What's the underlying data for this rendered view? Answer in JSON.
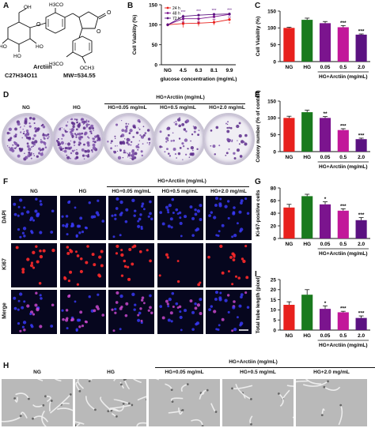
{
  "panels": {
    "A": {
      "label": "A",
      "substituent_top": "H3CO",
      "sugar_oh": [
        "OH",
        "HO",
        "HO",
        "HO"
      ],
      "substituent_ring1": "H3CO",
      "substituent_ring2": "OCH3",
      "name": "Arctiin",
      "formula": "C27H34O11",
      "mw": "MW=534.55"
    },
    "B": {
      "label": "B"
    },
    "C": {
      "label": "C"
    },
    "D": {
      "label": "D",
      "group_header": "HG+Arctiin (mg/mL)",
      "captions": [
        "NG",
        "HG",
        "HG+0.05 mg/mL",
        "HG+0.5 mg/mL",
        "HG+2.0 mg/mL"
      ]
    },
    "E": {
      "label": "E"
    },
    "F": {
      "label": "F",
      "group_header": "HG+Arctiin (mg/mL)",
      "captions": [
        "NG",
        "HG",
        "HG+0.05 mg/mL",
        "HG+0.5 mg/mL",
        "HG+2.0 mg/mL"
      ],
      "row_labels": [
        "DAPI",
        "Ki67",
        "Merge"
      ]
    },
    "G": {
      "label": "G"
    },
    "I": {
      "label": "I"
    },
    "H": {
      "label": "H",
      "group_header": "HG+Arctiin (mg/mL)",
      "captions": [
        "NG",
        "HG",
        "HG+0.05 mg/mL",
        "HG+0.5 mg/mL",
        "HG+2.0 mg/mL"
      ]
    }
  },
  "colors": {
    "red": "#e8211d",
    "green": "#1a7a1e",
    "purple": "#7b148e",
    "magenta": "#c2189a",
    "violet": "#5b1281",
    "dapi": "#3b3bff",
    "ki67": "#ff2a2a",
    "merge": "#d24bd6"
  },
  "chart_data": [
    {
      "id": "B",
      "type": "line",
      "title": "",
      "xlabel": "glucose concentration (mg/mL)",
      "ylabel": "Cell Viability (%)",
      "categories": [
        "NG",
        "4.5",
        "6.3",
        "8.1",
        "9.9"
      ],
      "ylim": [
        0,
        150
      ],
      "yticks": [
        "0",
        "50",
        "100",
        "150"
      ],
      "legend_position": "top-left",
      "series": [
        {
          "name": "24 h",
          "color": "#e8211d",
          "values": [
            100,
            103,
            104,
            106,
            113
          ],
          "errors": [
            4,
            10,
            8,
            7,
            4
          ],
          "sig": [
            "",
            "",
            "",
            "",
            "*"
          ]
        },
        {
          "name": "48 h",
          "color": "#7b148e",
          "values": [
            100,
            115,
            115,
            120,
            126
          ],
          "errors": [
            3,
            4,
            4,
            3,
            3
          ],
          "sig": [
            "",
            "**",
            "**",
            "**",
            "**"
          ]
        },
        {
          "name": "72 h",
          "color": "#5b1281",
          "values": [
            100,
            121,
            124,
            126,
            127
          ],
          "errors": [
            3,
            4,
            3,
            3,
            3
          ],
          "sig": [
            "",
            "***",
            "***",
            "***",
            "***"
          ]
        }
      ]
    },
    {
      "id": "C",
      "type": "bar",
      "ylabel": "Cell Viability (%)",
      "categories": [
        "NG",
        "HG",
        "0.05",
        "0.5",
        "2.0"
      ],
      "group_label": "HG+Arctiin (mg/mL)",
      "ylim": [
        0,
        150
      ],
      "yticks": [
        "0",
        "50",
        "100",
        "150"
      ],
      "values": [
        100,
        124,
        114,
        102,
        80
      ],
      "errors": [
        2,
        5,
        5,
        5,
        2
      ],
      "sig": [
        "",
        "",
        "",
        "***",
        "***"
      ]
    },
    {
      "id": "E",
      "type": "bar",
      "ylabel": "Colony number (% of control)",
      "categories": [
        "NG",
        "HG",
        "0.05",
        "0.5",
        "2.0"
      ],
      "group_label": "HG+Arctiin (mg/mL)",
      "ylim": [
        0,
        150
      ],
      "yticks": [
        "0",
        "50",
        "100",
        "150"
      ],
      "values": [
        100,
        117,
        100,
        64,
        37
      ],
      "errors": [
        5,
        6,
        4,
        4,
        3
      ],
      "sig": [
        "",
        "",
        "**",
        "***",
        "***"
      ]
    },
    {
      "id": "G",
      "type": "bar",
      "ylabel": "Ki-67-positive cells",
      "categories": [
        "NG",
        "HG",
        "0.05",
        "0.5",
        "2.0"
      ],
      "group_label": "HG+Arctiin (mg/mL)",
      "ylim": [
        0,
        80
      ],
      "yticks": [
        "0",
        "20",
        "40",
        "60",
        "80"
      ],
      "values": [
        49,
        67,
        54,
        44,
        29
      ],
      "errors": [
        5,
        3,
        4,
        3,
        4
      ],
      "sig": [
        "",
        "",
        "*",
        "***",
        "***"
      ]
    },
    {
      "id": "I",
      "type": "bar",
      "ylabel": "Total tube length (pixel)",
      "categories": [
        "NG",
        "HG",
        "0.05",
        "0.5",
        "2.0"
      ],
      "group_label": "HG+Arctiin (mg/mL)",
      "ylim": [
        0,
        25
      ],
      "yticks": [
        "0",
        "5",
        "10",
        "15",
        "20",
        "25"
      ],
      "values": [
        12.5,
        17.5,
        10.5,
        8.8,
        6
      ],
      "errors": [
        1.5,
        2.5,
        1.5,
        0.5,
        1
      ],
      "sig": [
        "",
        "",
        "*",
        "***",
        "***"
      ]
    }
  ]
}
